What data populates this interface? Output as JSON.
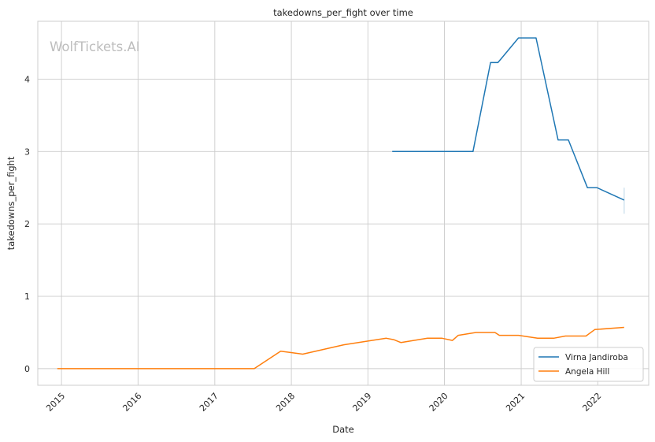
{
  "chart_data": {
    "type": "line",
    "title": "takedowns_per_fight over time",
    "xlabel": "Date",
    "ylabel": "takedowns_per_fight",
    "watermark": "WolfTickets.AI",
    "x_tick_labels": [
      "2015",
      "2016",
      "2017",
      "2018",
      "2019",
      "2020",
      "2021",
      "2022"
    ],
    "y_tick_labels": [
      "0",
      "1",
      "2",
      "3",
      "4"
    ],
    "ylim": [
      -0.23,
      4.8
    ],
    "xlim": [
      "2014-09-10",
      "2022-09-01"
    ],
    "grid": true,
    "legend_position": "lower right",
    "series": [
      {
        "name": "Virna Jandiroba",
        "color": "#1f77b4",
        "points": [
          [
            "2019-04-27",
            3.0
          ],
          [
            "2020-05-16",
            3.0
          ],
          [
            "2020-08-08",
            4.23
          ],
          [
            "2020-09-12",
            4.23
          ],
          [
            "2020-12-19",
            4.57
          ],
          [
            "2021-03-13",
            4.57
          ],
          [
            "2021-06-26",
            3.16
          ],
          [
            "2021-08-14",
            3.16
          ],
          [
            "2021-11-13",
            2.5
          ],
          [
            "2021-12-29",
            2.5
          ],
          [
            "2022-05-07",
            2.33
          ]
        ],
        "band": {
          "x": "2022-05-07",
          "low": 2.14,
          "high": 2.5
        }
      },
      {
        "name": "Angela Hill",
        "color": "#ff7f0e",
        "points": [
          [
            "2014-12-12",
            0.0
          ],
          [
            "2017-07-08",
            0.0
          ],
          [
            "2017-11-11",
            0.24
          ],
          [
            "2018-02-24",
            0.2
          ],
          [
            "2018-09-08",
            0.33
          ],
          [
            "2019-03-30",
            0.42
          ],
          [
            "2019-05-04",
            0.4
          ],
          [
            "2019-06-08",
            0.36
          ],
          [
            "2019-10-12",
            0.42
          ],
          [
            "2019-12-21",
            0.42
          ],
          [
            "2020-02-08",
            0.39
          ],
          [
            "2020-03-07",
            0.46
          ],
          [
            "2020-05-30",
            0.5
          ],
          [
            "2020-08-29",
            0.5
          ],
          [
            "2020-09-19",
            0.46
          ],
          [
            "2020-12-19",
            0.46
          ],
          [
            "2021-03-20",
            0.42
          ],
          [
            "2021-06-05",
            0.42
          ],
          [
            "2021-07-31",
            0.45
          ],
          [
            "2021-11-06",
            0.45
          ],
          [
            "2021-12-18",
            0.54
          ],
          [
            "2022-05-07",
            0.57
          ]
        ]
      }
    ]
  }
}
